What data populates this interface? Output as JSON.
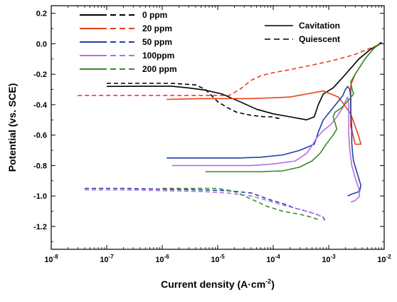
{
  "chart_data": {
    "type": "line",
    "title": "",
    "xlabel": "Current density (A·cm",
    "xlabel_sup": "-2",
    "xlabel_close": ")",
    "ylabel": "Potential (vs. SCE)",
    "x_scale": "log",
    "xlim": [
      1e-08,
      0.01
    ],
    "ylim": [
      -1.35,
      0.25
    ],
    "x_ticks": [
      {
        "value": 1e-08,
        "base": "10",
        "exp": "-8"
      },
      {
        "value": 1e-07,
        "base": "10",
        "exp": "-7"
      },
      {
        "value": 1e-06,
        "base": "10",
        "exp": "-6"
      },
      {
        "value": 1e-05,
        "base": "10",
        "exp": "-5"
      },
      {
        "value": 0.0001,
        "base": "10",
        "exp": "-4"
      },
      {
        "value": 0.001,
        "base": "10",
        "exp": "-3"
      },
      {
        "value": 0.01,
        "base": "10",
        "exp": "-2"
      }
    ],
    "y_ticks": [
      {
        "value": 0.2,
        "label": "0.2"
      },
      {
        "value": 0.0,
        "label": "0.0"
      },
      {
        "value": -0.2,
        "label": "-0.2"
      },
      {
        "value": -0.4,
        "label": "-0.4"
      },
      {
        "value": -0.6,
        "label": "-0.6"
      },
      {
        "value": -0.8,
        "label": "-0.8"
      },
      {
        "value": -1.0,
        "label": "-1.0"
      },
      {
        "value": -1.2,
        "label": "-1.2"
      }
    ],
    "grid": false,
    "legend_concentration_placement": "top-left",
    "legend_condition_placement": "top-right",
    "legend_condition": [
      {
        "label": "Cavitation",
        "dash": "solid"
      },
      {
        "label": "Quiescent",
        "dash": "dashed"
      }
    ],
    "series": [
      {
        "name": "0 ppm",
        "color": "#000000",
        "cavitation": [
          [
            1e-07,
            -0.28
          ],
          [
            5e-07,
            -0.279
          ],
          [
            1.5e-06,
            -0.279
          ],
          [
            3e-06,
            -0.29
          ],
          [
            6e-06,
            -0.305
          ],
          [
            1.2e-05,
            -0.33
          ],
          [
            2.5e-05,
            -0.38
          ],
          [
            5e-05,
            -0.43
          ],
          [
            0.0001,
            -0.46
          ],
          [
            0.0002,
            -0.48
          ],
          [
            0.0004,
            -0.5
          ],
          [
            0.00055,
            -0.48
          ],
          [
            0.00065,
            -0.4
          ],
          [
            0.0008,
            -0.33
          ],
          [
            0.0012,
            -0.29
          ],
          [
            0.0017,
            -0.23
          ],
          [
            0.0035,
            -0.1
          ],
          [
            0.0055,
            -0.04
          ],
          [
            0.0075,
            -0.01
          ],
          [
            0.009,
            0.01
          ]
        ],
        "quiescent": [
          [
            1e-07,
            -0.26
          ],
          [
            5e-07,
            -0.26
          ],
          [
            1.5e-06,
            -0.26
          ],
          [
            2.5e-06,
            -0.265
          ],
          [
            4e-06,
            -0.27
          ],
          [
            6e-06,
            -0.3
          ],
          [
            1e-05,
            -0.38
          ],
          [
            1.5e-05,
            -0.42
          ],
          [
            2.2e-05,
            -0.45
          ],
          [
            4e-05,
            -0.47
          ],
          [
            7e-05,
            -0.48
          ],
          [
            0.0001,
            -0.48
          ],
          [
            0.00012,
            -0.49
          ],
          [
            0.00014,
            -0.49
          ]
        ]
      },
      {
        "name": "20 ppm",
        "color": "#e8411c",
        "cavitation": [
          [
            1.2e-06,
            -0.365
          ],
          [
            5e-06,
            -0.36
          ],
          [
            1.5e-05,
            -0.36
          ],
          [
            4e-05,
            -0.36
          ],
          [
            0.0001,
            -0.355
          ],
          [
            0.0002,
            -0.35
          ],
          [
            0.0004,
            -0.33
          ],
          [
            0.0008,
            -0.31
          ],
          [
            0.0015,
            -0.35
          ],
          [
            0.0025,
            -0.46
          ],
          [
            0.0035,
            -0.61
          ],
          [
            0.0038,
            -0.66
          ],
          [
            0.003,
            -0.66
          ],
          [
            0.0025,
            -0.54
          ],
          [
            0.0025,
            -0.43
          ],
          [
            0.0025,
            -0.33
          ],
          [
            0.0025,
            -0.27
          ],
          [
            0.003,
            -0.2
          ],
          [
            0.0045,
            -0.1
          ],
          [
            0.0065,
            -0.03
          ],
          [
            0.0085,
            0.0
          ]
        ],
        "quiescent": [
          [
            3e-08,
            -0.34
          ],
          [
            2e-07,
            -0.34
          ],
          [
            1e-06,
            -0.34
          ],
          [
            3e-06,
            -0.34
          ],
          [
            8e-06,
            -0.34
          ],
          [
            1.6e-05,
            -0.34
          ],
          [
            2.5e-05,
            -0.3
          ],
          [
            4e-05,
            -0.24
          ],
          [
            6e-05,
            -0.21
          ],
          [
            0.0001,
            -0.19
          ],
          [
            0.0002,
            -0.17
          ],
          [
            0.0005,
            -0.14
          ],
          [
            0.0012,
            -0.11
          ],
          [
            0.003,
            -0.07
          ],
          [
            0.0055,
            -0.03
          ],
          [
            0.0075,
            -0.01
          ]
        ]
      },
      {
        "name": "50 ppm",
        "color": "#2040a8",
        "cavitation": [
          [
            1.2e-06,
            -0.75
          ],
          [
            4e-06,
            -0.75
          ],
          [
            1e-05,
            -0.75
          ],
          [
            2.5e-05,
            -0.75
          ],
          [
            6e-05,
            -0.745
          ],
          [
            0.00015,
            -0.73
          ],
          [
            0.0003,
            -0.7
          ],
          [
            0.00055,
            -0.66
          ],
          [
            0.0006,
            -0.62
          ],
          [
            0.00065,
            -0.58
          ],
          [
            0.0008,
            -0.5
          ],
          [
            0.0012,
            -0.42
          ],
          [
            0.0018,
            -0.34
          ],
          [
            0.002,
            -0.3
          ],
          [
            0.0022,
            -0.28
          ],
          [
            0.0024,
            -0.3
          ],
          [
            0.0025,
            -0.36
          ],
          [
            0.0025,
            -0.45
          ],
          [
            0.0026,
            -0.55
          ],
          [
            0.0026,
            -0.65
          ],
          [
            0.0027,
            -0.72
          ],
          [
            0.0028,
            -0.77
          ],
          [
            0.0032,
            -0.84
          ],
          [
            0.0038,
            -0.93
          ],
          [
            0.0036,
            -0.97
          ],
          [
            0.0025,
            -0.99
          ],
          [
            0.0022,
            -1.0
          ]
        ],
        "quiescent": [
          [
            4e-08,
            -0.95
          ],
          [
            2e-07,
            -0.95
          ],
          [
            1e-06,
            -0.955
          ],
          [
            5e-06,
            -0.96
          ],
          [
            1.5e-05,
            -0.965
          ],
          [
            4e-05,
            -0.98
          ],
          [
            8e-05,
            -1.02
          ],
          [
            0.00015,
            -1.05
          ],
          [
            0.00025,
            -1.08
          ],
          [
            0.0004,
            -1.1
          ],
          [
            0.0006,
            -1.12
          ],
          [
            0.0008,
            -1.14
          ],
          [
            0.00085,
            -1.16
          ]
        ]
      },
      {
        "name": "100ppm",
        "color": "#b36ee6",
        "cavitation": [
          [
            1.5e-06,
            -0.8
          ],
          [
            5e-06,
            -0.8
          ],
          [
            1.5e-05,
            -0.8
          ],
          [
            4e-05,
            -0.8
          ],
          [
            0.0001,
            -0.79
          ],
          [
            0.00025,
            -0.77
          ],
          [
            0.0004,
            -0.72
          ],
          [
            0.0005,
            -0.67
          ],
          [
            0.0006,
            -0.62
          ],
          [
            0.0008,
            -0.57
          ],
          [
            0.0011,
            -0.53
          ],
          [
            0.0014,
            -0.48
          ],
          [
            0.0018,
            -0.42
          ],
          [
            0.002,
            -0.38
          ],
          [
            0.0022,
            -0.35
          ],
          [
            0.0023,
            -0.4
          ],
          [
            0.0023,
            -0.5
          ],
          [
            0.0023,
            -0.6
          ],
          [
            0.0024,
            -0.7
          ],
          [
            0.0026,
            -0.8
          ],
          [
            0.003,
            -0.88
          ],
          [
            0.0035,
            -0.95
          ],
          [
            0.0036,
            -1.0
          ],
          [
            0.003,
            -1.03
          ],
          [
            0.0025,
            -1.04
          ]
        ],
        "quiescent": [
          [
            4e-08,
            -0.96
          ],
          [
            2e-07,
            -0.96
          ],
          [
            1e-06,
            -0.965
          ],
          [
            5e-06,
            -0.97
          ],
          [
            1.5e-05,
            -0.98
          ],
          [
            4e-05,
            -1.0
          ],
          [
            8e-05,
            -1.03
          ],
          [
            0.00015,
            -1.06
          ],
          [
            0.00025,
            -1.08
          ],
          [
            0.0004,
            -1.1
          ],
          [
            0.0006,
            -1.12
          ],
          [
            0.0008,
            -1.14
          ],
          [
            0.00085,
            -1.15
          ]
        ]
      },
      {
        "name": "200 ppm",
        "color": "#3a8a2a",
        "cavitation": [
          [
            6e-06,
            -0.84
          ],
          [
            2e-05,
            -0.84
          ],
          [
            6e-05,
            -0.84
          ],
          [
            0.00015,
            -0.835
          ],
          [
            0.0003,
            -0.81
          ],
          [
            0.0005,
            -0.77
          ],
          [
            0.0007,
            -0.72
          ],
          [
            0.0009,
            -0.66
          ],
          [
            0.0012,
            -0.6
          ],
          [
            0.0014,
            -0.56
          ],
          [
            0.0013,
            -0.52
          ],
          [
            0.0012,
            -0.48
          ],
          [
            0.0013,
            -0.45
          ],
          [
            0.0017,
            -0.42
          ],
          [
            0.0023,
            -0.37
          ],
          [
            0.0028,
            -0.33
          ],
          [
            0.0026,
            -0.29
          ],
          [
            0.0025,
            -0.25
          ],
          [
            0.003,
            -0.2
          ],
          [
            0.0045,
            -0.1
          ],
          [
            0.0065,
            -0.03
          ],
          [
            0.0085,
            0.0
          ]
        ],
        "quiescent": [
          [
            1e-06,
            -0.95
          ],
          [
            3e-06,
            -0.95
          ],
          [
            6e-06,
            -0.95
          ],
          [
            1e-05,
            -0.95
          ],
          [
            2e-05,
            -0.97
          ],
          [
            4e-05,
            -1.02
          ],
          [
            8e-05,
            -1.07
          ],
          [
            0.00015,
            -1.1
          ],
          [
            0.0003,
            -1.12
          ],
          [
            0.0005,
            -1.14
          ],
          [
            0.0007,
            -1.16
          ]
        ]
      }
    ]
  }
}
